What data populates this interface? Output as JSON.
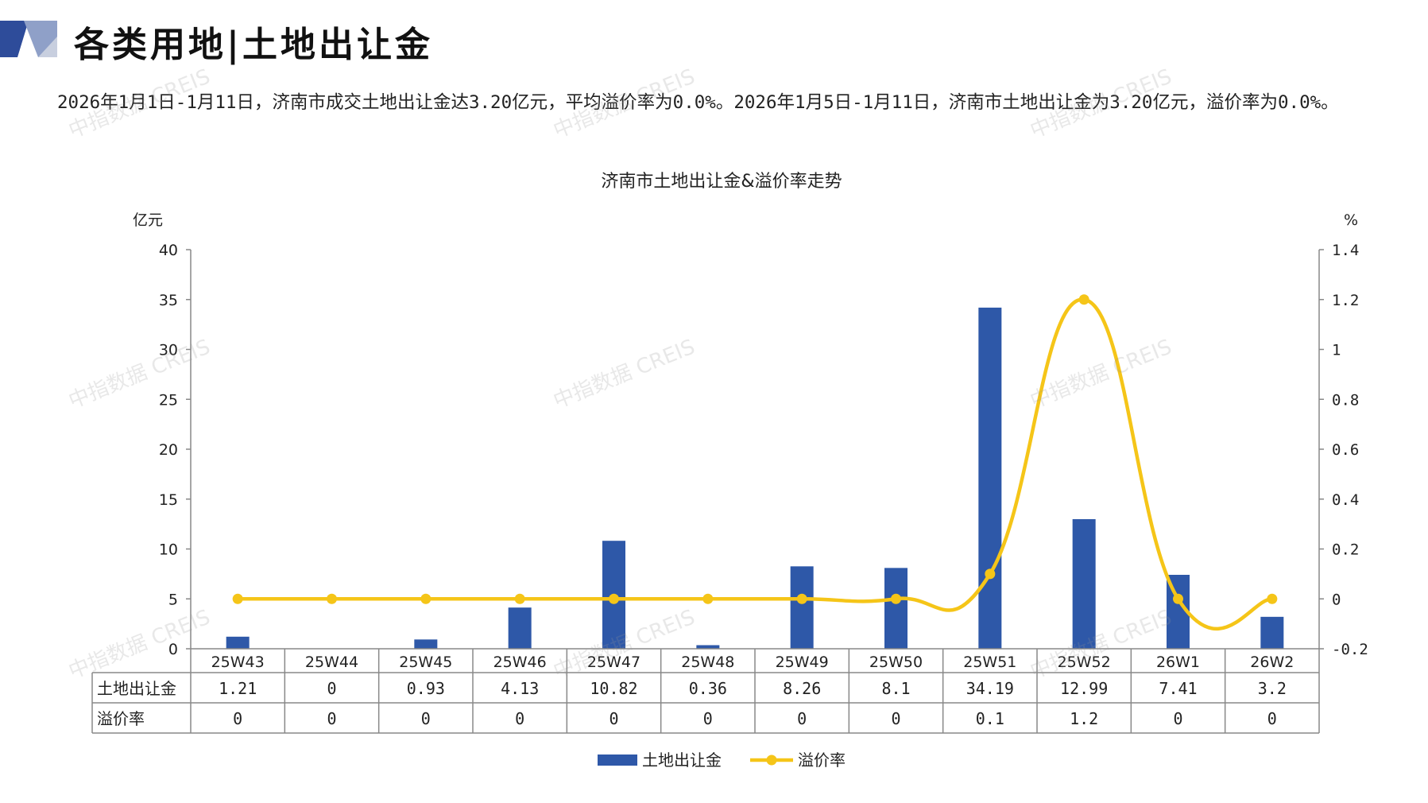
{
  "page_title": "各类用地|土地出让金",
  "summary": "2026年1月1日-1月11日，济南市成交土地出让金达3.20亿元，平均溢价率为0.0%。2026年1月5日-1月11日，济南市土地出让金为3.20亿元，溢价率为0.0%。",
  "watermark": "中指数据 CREIS",
  "colors": {
    "bar": "#2E58A8",
    "line": "#F5C518",
    "grid": "#888888"
  },
  "chart_data": {
    "type": "bar",
    "title": "济南市土地出让金&溢价率走势",
    "categories": [
      "25W43",
      "25W44",
      "25W45",
      "25W46",
      "25W47",
      "25W48",
      "25W49",
      "25W50",
      "25W51",
      "25W52",
      "26W1",
      "26W2"
    ],
    "y_left_label": "亿元",
    "y_right_label": "%",
    "y_left_ticks": [
      "0",
      "5",
      "10",
      "15",
      "20",
      "25",
      "30",
      "35",
      "40"
    ],
    "y_right_ticks": [
      "-0.2",
      "0",
      "0.2",
      "0.4",
      "0.6",
      "0.8",
      "1",
      "1.2",
      "1.4"
    ],
    "ylim_left": [
      0,
      40
    ],
    "ylim_right": [
      -0.2,
      1.4
    ],
    "series": [
      {
        "name": "土地出让金",
        "type": "bar",
        "axis": "left",
        "values": [
          1.21,
          0,
          0.93,
          4.13,
          10.82,
          0.36,
          8.26,
          8.1,
          34.19,
          12.99,
          7.41,
          3.2
        ],
        "table_labels": [
          "1.21",
          "0",
          "0.93",
          "4.13",
          "10.82",
          "0.36",
          "8.26",
          "8.1",
          "34.19",
          "12.99",
          "7.41",
          "3.2"
        ]
      },
      {
        "name": "溢价率",
        "type": "line",
        "axis": "right",
        "smooth": true,
        "values": [
          0,
          0,
          0,
          0,
          0,
          0,
          0,
          0,
          0.1,
          1.2,
          0,
          0
        ],
        "table_labels": [
          "0",
          "0",
          "0",
          "0",
          "0",
          "0",
          "0",
          "0",
          "0.1",
          "1.2",
          "0",
          "0"
        ]
      }
    ],
    "legend_position": "bottom",
    "data_table": true
  }
}
